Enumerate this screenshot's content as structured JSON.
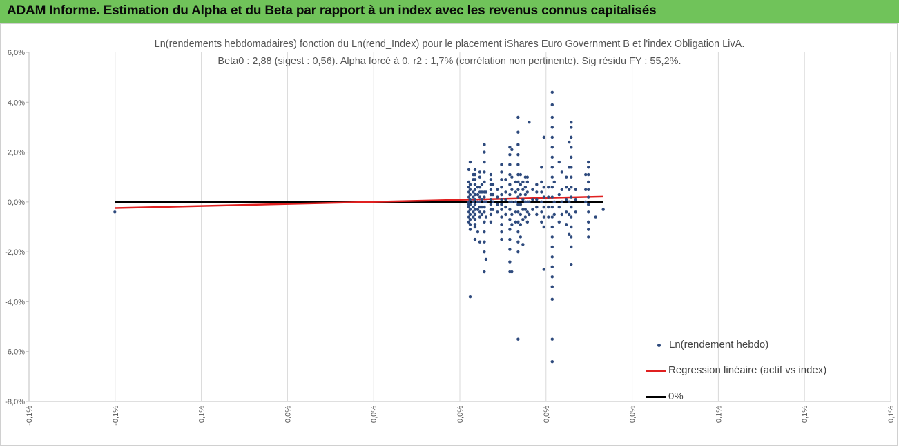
{
  "banner": {
    "title": "ADAM Informe. Estimation du Alpha et du Beta par rapport à un index avec les revenus connus capitalisés",
    "color": "#70c35a"
  },
  "chart_data": {
    "type": "scatter",
    "title": "Ln(rendements hebdomadaires) fonction du Ln(rend_Index) pour le placement iShares Euro Government B et l'index Obligation LivA.",
    "subtitle": "Beta0 : 2,88 (sigest : 0,56). Alpha forcé à 0. r2 : 1,7% (corrélation non pertinente). Sig résidu FY : 55,2%.",
    "xlabel": "",
    "ylabel": "",
    "x_tick_labels": [
      "-0,1%",
      "-0,1%",
      "-0,1%",
      "0,0%",
      "0,0%",
      "0,0%",
      "0,0%",
      "0,0%",
      "0,1%",
      "0,1%",
      "0,1%"
    ],
    "y_tick_labels": [
      "6,0%",
      "4,0%",
      "2,0%",
      "0,0%",
      "-2,0%",
      "-4,0%",
      "-6,0%",
      "-8,0%"
    ],
    "xlim": [
      -0.125,
      0.125
    ],
    "ylim": [
      -8.0,
      6.0
    ],
    "grid": "vertical",
    "legend_position": "bottom-right",
    "series": [
      {
        "name": "Ln(rendement hebdo)",
        "kind": "scatter",
        "color": "#2e4a7d",
        "columns": [
          {
            "x": 0.0026,
            "y": [
              -0.8,
              -0.6,
              -0.4,
              -0.2,
              -0.1,
              0.0,
              0.2,
              0.4,
              0.6,
              0.8,
              1.3
            ]
          },
          {
            "x": 0.003,
            "y": [
              -1.1,
              -0.9,
              -0.7,
              -0.5,
              -0.3,
              -0.1,
              0.1,
              0.3,
              0.5,
              0.7,
              1.6,
              -3.8
            ]
          },
          {
            "x": 0.0039,
            "y": [
              -0.6,
              -0.4,
              -0.2,
              0.0,
              0.2,
              0.4,
              0.9,
              1.1
            ]
          },
          {
            "x": 0.0044,
            "y": [
              -1.5,
              -1.0,
              -0.9,
              -0.7,
              -0.5,
              -0.3,
              -0.1,
              0.1,
              0.3,
              0.5,
              0.7,
              0.9,
              1.1,
              1.3
            ]
          },
          {
            "x": 0.0052,
            "y": [
              -1.2,
              -0.3,
              0.0,
              0.3,
              0.6
            ]
          },
          {
            "x": 0.0058,
            "y": [
              -1.6,
              -0.6,
              -0.4,
              -0.2,
              0.0,
              0.2,
              0.4,
              0.6,
              1.0,
              1.2
            ]
          },
          {
            "x": 0.0064,
            "y": [
              -0.5,
              -0.2,
              0.1,
              0.4,
              0.7
            ]
          },
          {
            "x": 0.0071,
            "y": [
              -2.8,
              -2.0,
              -1.6,
              -1.2,
              -0.8,
              -0.4,
              -0.2,
              0.0,
              0.2,
              0.4,
              0.8,
              1.2,
              1.6,
              2.0,
              2.3
            ]
          },
          {
            "x": 0.0076,
            "y": [
              -2.3,
              -0.6,
              0.0,
              0.4
            ]
          },
          {
            "x": 0.009,
            "y": [
              -0.8,
              -0.5,
              -0.3,
              -0.1,
              0.1,
              0.3,
              0.5,
              0.7,
              0.9,
              1.1
            ]
          },
          {
            "x": 0.0096,
            "y": [
              -0.3,
              0.0,
              0.3,
              0.7
            ]
          },
          {
            "x": 0.0109,
            "y": [
              -0.4,
              -0.1,
              0.2,
              0.5
            ]
          },
          {
            "x": 0.0121,
            "y": [
              -1.5,
              -1.2,
              -0.9,
              -0.6,
              -0.3,
              -0.1,
              0.1,
              0.3,
              0.6,
              0.9,
              1.2,
              1.5
            ]
          },
          {
            "x": 0.0133,
            "y": [
              -0.5,
              -0.2,
              0.1,
              0.4,
              0.9
            ]
          },
          {
            "x": 0.0145,
            "y": [
              -2.8,
              -2.4,
              -1.9,
              -1.5,
              -1.1,
              -0.7,
              -0.3,
              0.0,
              0.3,
              0.7,
              1.1,
              1.5,
              1.9,
              2.2
            ]
          },
          {
            "x": 0.0151,
            "y": [
              -2.8,
              -0.9,
              -0.5,
              0.0,
              0.5,
              1.0,
              2.1
            ]
          },
          {
            "x": 0.0162,
            "y": [
              -0.8,
              -0.4,
              0.0,
              0.4,
              0.8
            ]
          },
          {
            "x": 0.0169,
            "y": [
              -2.0,
              -1.6,
              -1.2,
              -0.8,
              -0.4,
              -0.1,
              0.2,
              0.5,
              0.8,
              1.1,
              1.5,
              1.9,
              2.3,
              2.8,
              3.4,
              -5.5
            ]
          },
          {
            "x": 0.0176,
            "y": [
              -1.4,
              -0.9,
              -0.5,
              -0.1,
              0.3,
              0.7,
              1.1
            ]
          },
          {
            "x": 0.0183,
            "y": [
              -1.7,
              -0.7,
              -0.3,
              0.1,
              0.5,
              0.8
            ]
          },
          {
            "x": 0.019,
            "y": [
              -0.6,
              -0.3,
              0.0,
              0.3,
              0.6,
              1.0
            ]
          },
          {
            "x": 0.0196,
            "y": [
              -0.8,
              -0.4,
              0.0,
              0.4,
              0.8,
              1.0
            ]
          },
          {
            "x": 0.0201,
            "y": [
              -0.5,
              0.0,
              3.2
            ]
          },
          {
            "x": 0.0211,
            "y": [
              -0.3,
              0.1,
              0.5
            ]
          },
          {
            "x": 0.0223,
            "y": [
              -0.5,
              -0.2,
              0.1,
              0.4,
              0.7
            ]
          },
          {
            "x": 0.0237,
            "y": [
              -0.8,
              -0.4,
              0.0,
              0.4,
              0.8,
              1.4
            ]
          },
          {
            "x": 0.0244,
            "y": [
              -2.7,
              -1.0,
              -0.6,
              -0.2,
              0.2,
              0.6,
              2.6
            ]
          },
          {
            "x": 0.0257,
            "y": [
              -0.6,
              -0.2,
              0.2,
              0.6
            ]
          },
          {
            "x": 0.0268,
            "y": [
              -3.9,
              -3.4,
              -3.0,
              -2.6,
              -2.2,
              -1.8,
              -1.4,
              -1.0,
              -0.6,
              -0.2,
              0.2,
              0.6,
              1.0,
              1.4,
              1.8,
              2.2,
              2.6,
              3.0,
              3.4,
              3.9,
              4.4,
              -5.5,
              -6.4
            ]
          },
          {
            "x": 0.0274,
            "y": [
              -0.5,
              0.0,
              0.8
            ]
          },
          {
            "x": 0.0288,
            "y": [
              -0.8,
              -0.2,
              0.3,
              1.6
            ]
          },
          {
            "x": 0.0296,
            "y": [
              -0.5,
              0.0,
              0.5,
              1.2
            ]
          },
          {
            "x": 0.0309,
            "y": [
              -0.9,
              -0.4,
              0.1,
              0.6,
              1.0
            ]
          },
          {
            "x": 0.0317,
            "y": [
              -1.3,
              -0.5,
              0.0,
              0.5,
              1.4,
              2.4
            ]
          },
          {
            "x": 0.0323,
            "y": [
              -2.5,
              -1.8,
              -1.4,
              -1.0,
              -0.6,
              -0.2,
              0.2,
              0.6,
              1.0,
              1.4,
              1.8,
              2.2,
              2.6,
              3.0,
              3.2
            ]
          },
          {
            "x": 0.0336,
            "y": [
              -0.4,
              0.1,
              0.5
            ]
          },
          {
            "x": 0.0365,
            "y": [
              0.0,
              0.5,
              1.1
            ]
          },
          {
            "x": 0.0373,
            "y": [
              -1.4,
              -1.1,
              -0.8,
              -0.4,
              -0.1,
              0.2,
              0.5,
              0.8,
              1.1,
              1.4,
              1.6
            ]
          },
          {
            "x": 0.0394,
            "y": [
              -0.6
            ]
          },
          {
            "x": 0.0416,
            "y": [
              -0.3
            ]
          },
          {
            "x": -0.1001,
            "y": [
              -0.4
            ]
          }
        ]
      },
      {
        "name": "Regression linéaire (actif vs index)",
        "kind": "line",
        "color": "#e02020",
        "x": [
          -0.1001,
          0.0416
        ],
        "y": [
          -0.24,
          0.22
        ]
      },
      {
        "name": "0%",
        "kind": "line",
        "color": "#000000",
        "x": [
          -0.1001,
          0.0416
        ],
        "y": [
          0.0,
          0.0
        ]
      }
    ]
  }
}
